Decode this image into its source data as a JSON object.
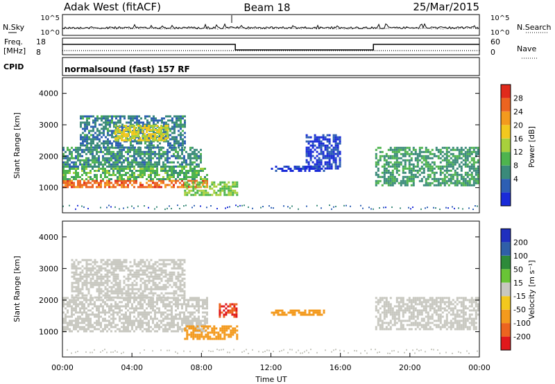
{
  "header": {
    "station": "Adak West (fitACF)",
    "beam": "Beam 18",
    "date": "25/Mar/2015"
  },
  "top_panels": {
    "nsky_label": "N.Sky",
    "nsearch_label": "N.Search",
    "nsky_ticks": [
      "10^5",
      "10^0"
    ],
    "nsearch_ticks": [
      "10^5",
      "10^0"
    ],
    "freq_label_1": "Freq.",
    "freq_label_2": "[MHz]",
    "freq_ticks": [
      "18",
      "8"
    ],
    "nave_label": "Nave",
    "nave_ticks": [
      "60",
      "0"
    ],
    "cpid_label": "CPID",
    "cpid_text": "normalsound (fast) 157 RF"
  },
  "colorbars": {
    "power": {
      "label": "Power [dB]",
      "ticks": [
        "28",
        "24",
        "20",
        "16",
        "12",
        "8",
        "4"
      ],
      "colors": [
        "#1a2bd8",
        "#2d5fb3",
        "#3a8a7a",
        "#4eb44e",
        "#a8d03c",
        "#f2c81e",
        "#f39a1e",
        "#ec6420",
        "#e02a1c"
      ]
    },
    "velocity": {
      "label": "Velocity [m s⁻¹]",
      "ticks": [
        "200",
        "100",
        "50",
        "15",
        "-15",
        "-50",
        "-100",
        "-200"
      ],
      "colors": [
        "#1f2fbf",
        "#2f5fa8",
        "#2d8a3a",
        "#69c436",
        "#c8c8c0",
        "#f2c81e",
        "#f39a1e",
        "#ec6420",
        "#e0181c"
      ]
    }
  },
  "chart_data": [
    {
      "type": "heatmap",
      "name": "power",
      "ylabel": "Slant Range [km]",
      "xlim": [
        0,
        24
      ],
      "ylim": [
        200,
        4500
      ],
      "yticks": [
        "1000",
        "2000",
        "3000",
        "4000"
      ],
      "features": [
        {
          "t0": 0.0,
          "t1": 8.3,
          "r0": 1000,
          "r1": 1250,
          "level": 28
        },
        {
          "t0": 0.0,
          "t1": 8.3,
          "r0": 1250,
          "r1": 1700,
          "level": 14
        },
        {
          "t0": 0.0,
          "t1": 8.0,
          "r0": 1700,
          "r1": 2300,
          "level": 11
        },
        {
          "t0": 1.0,
          "t1": 7.0,
          "r0": 2300,
          "r1": 3300,
          "level": 10
        },
        {
          "t0": 3.0,
          "t1": 6.0,
          "r0": 2500,
          "r1": 3000,
          "level": 20
        },
        {
          "t0": 7.0,
          "t1": 10.0,
          "r0": 800,
          "r1": 1200,
          "level": 16
        },
        {
          "t0": 12.0,
          "t1": 15.0,
          "r0": 1550,
          "r1": 1700,
          "level": 4
        },
        {
          "t0": 14.0,
          "t1": 16.0,
          "r0": 1600,
          "r1": 2700,
          "level": 5
        },
        {
          "t0": 18.0,
          "t1": 24.0,
          "r0": 1100,
          "r1": 2300,
          "level": 12
        }
      ]
    },
    {
      "type": "heatmap",
      "name": "velocity",
      "ylabel": "Slant Range [km]",
      "xlabel": "Time UT",
      "xlim": [
        0,
        24
      ],
      "ylim": [
        200,
        4500
      ],
      "yticks": [
        "1000",
        "2000",
        "3000",
        "4000"
      ],
      "xticks": [
        "00:00",
        "04:00",
        "08:00",
        "12:00",
        "16:00",
        "20:00",
        "00:00"
      ],
      "features": [
        {
          "t0": 0.0,
          "t1": 8.3,
          "r0": 1000,
          "r1": 2100,
          "vel": 0
        },
        {
          "t0": 0.5,
          "t1": 7.0,
          "r0": 2100,
          "r1": 3300,
          "vel": 0
        },
        {
          "t0": 7.0,
          "t1": 10.0,
          "r0": 800,
          "r1": 1200,
          "vel": -60
        },
        {
          "t0": 9.0,
          "t1": 10.0,
          "r0": 1500,
          "r1": 1900,
          "vel": -150
        },
        {
          "t0": 12.0,
          "t1": 15.0,
          "r0": 1550,
          "r1": 1700,
          "vel": -50
        },
        {
          "t0": 18.0,
          "t1": 24.0,
          "r0": 1100,
          "r1": 2100,
          "vel": 0
        }
      ]
    }
  ]
}
